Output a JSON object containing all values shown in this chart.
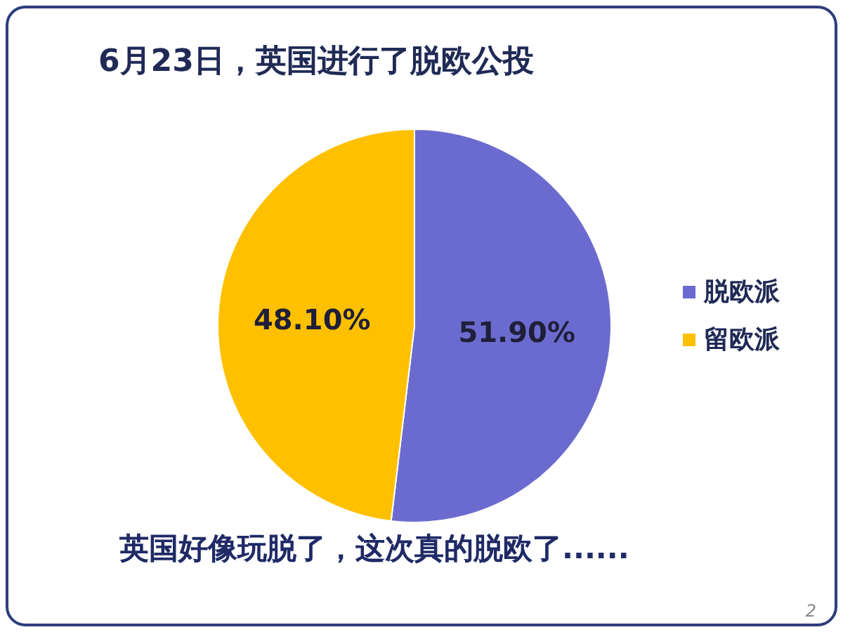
{
  "chart_data": {
    "type": "pie",
    "title": "6月23日，英国进行了脱欧公投",
    "categories": [
      "脱欧派",
      "留欧派"
    ],
    "values": [
      51.9,
      48.1
    ],
    "colors": [
      "#6b6bcf",
      "#ffc000"
    ],
    "value_labels": [
      "51.90%",
      "48.10%"
    ],
    "legend": "right",
    "annotations": [
      "英国好像玩脱了，这次真的脱欧了......",
      "2"
    ]
  }
}
